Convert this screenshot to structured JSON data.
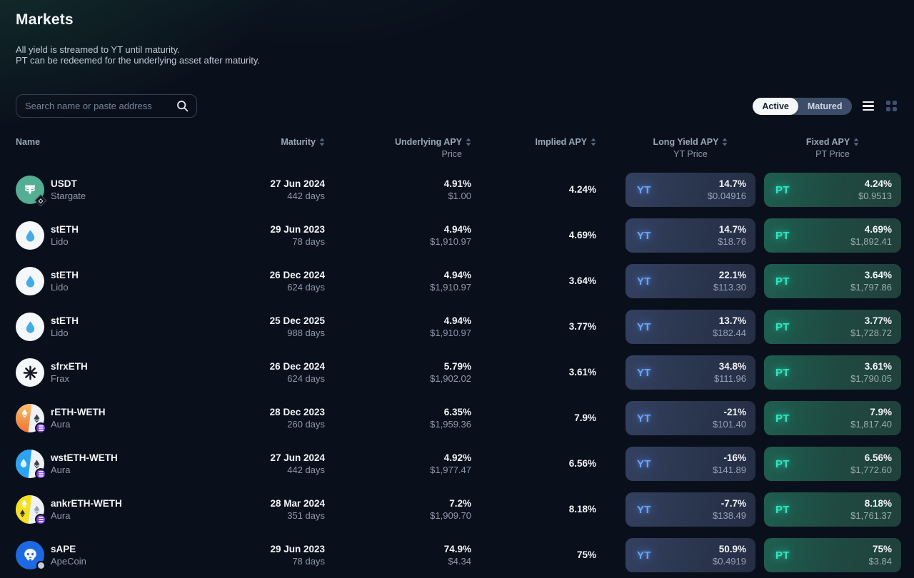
{
  "page": {
    "title": "Markets",
    "subtitle_line1": "All yield is streamed to YT until maturity.",
    "subtitle_line2": "PT can be redeemed for the underlying asset after maturity."
  },
  "search": {
    "placeholder": "Search name or paste address"
  },
  "filter_toggle": {
    "active_label": "Active",
    "matured_label": "Matured",
    "selected": "Active"
  },
  "view_icons": {
    "list": "three-bars",
    "grid": "four-squares",
    "active_view": "list"
  },
  "colors": {
    "background": "#0a101b",
    "yt_accent": "#6aa4f8",
    "pt_accent": "#2fe6c0",
    "toggle_active_bg": "#f4f7fa",
    "aura_badge_purple": "#7b3fe4",
    "usdt_teal": "#53ae94",
    "apecoin_blue": "#1d69e0",
    "lido_droplet_blue": "#44abe9"
  },
  "table": {
    "headers": {
      "name": "Name",
      "maturity": "Maturity",
      "underlying_apy": "Underlying APY",
      "underlying_sub": "Price",
      "implied_apy": "Implied APY",
      "long_yield_apy": "Long Yield APY",
      "long_yield_sub": "YT Price",
      "fixed_apy": "Fixed APY",
      "fixed_sub": "PT Price"
    },
    "yt_label": "YT",
    "pt_label": "PT",
    "rows": [
      {
        "asset": "USDT",
        "protocol": "Stargate",
        "icon": "usdt",
        "maturity_date": "27 Jun 2024",
        "maturity_days": "442 days",
        "underlying_apy": "4.91%",
        "underlying_price": "$1.00",
        "implied_apy": "4.24%",
        "yt_apy": "14.7%",
        "yt_price": "$0.04916",
        "pt_apy": "4.24%",
        "pt_price": "$0.9513"
      },
      {
        "asset": "stETH",
        "protocol": "Lido",
        "icon": "steth",
        "maturity_date": "29 Jun 2023",
        "maturity_days": "78 days",
        "underlying_apy": "4.94%",
        "underlying_price": "$1,910.97",
        "implied_apy": "4.69%",
        "yt_apy": "14.7%",
        "yt_price": "$18.76",
        "pt_apy": "4.69%",
        "pt_price": "$1,892.41"
      },
      {
        "asset": "stETH",
        "protocol": "Lido",
        "icon": "steth",
        "maturity_date": "26 Dec 2024",
        "maturity_days": "624 days",
        "underlying_apy": "4.94%",
        "underlying_price": "$1,910.97",
        "implied_apy": "3.64%",
        "yt_apy": "22.1%",
        "yt_price": "$113.30",
        "pt_apy": "3.64%",
        "pt_price": "$1,797.86"
      },
      {
        "asset": "stETH",
        "protocol": "Lido",
        "icon": "steth",
        "maturity_date": "25 Dec 2025",
        "maturity_days": "988 days",
        "underlying_apy": "4.94%",
        "underlying_price": "$1,910.97",
        "implied_apy": "3.77%",
        "yt_apy": "13.7%",
        "yt_price": "$182.44",
        "pt_apy": "3.77%",
        "pt_price": "$1,728.72"
      },
      {
        "asset": "sfrxETH",
        "protocol": "Frax",
        "icon": "frax",
        "maturity_date": "26 Dec 2024",
        "maturity_days": "624 days",
        "underlying_apy": "5.79%",
        "underlying_price": "$1,902.02",
        "implied_apy": "3.61%",
        "yt_apy": "34.8%",
        "yt_price": "$111.96",
        "pt_apy": "3.61%",
        "pt_price": "$1,790.05"
      },
      {
        "asset": "rETH-WETH",
        "protocol": "Aura",
        "icon": "reth-weth",
        "maturity_date": "28 Dec 2023",
        "maturity_days": "260 days",
        "underlying_apy": "6.35%",
        "underlying_price": "$1,959.36",
        "implied_apy": "7.9%",
        "yt_apy": "-21%",
        "yt_price": "$101.40",
        "pt_apy": "7.9%",
        "pt_price": "$1,817.40"
      },
      {
        "asset": "wstETH-WETH",
        "protocol": "Aura",
        "icon": "wsteth-weth",
        "maturity_date": "27 Jun 2024",
        "maturity_days": "442 days",
        "underlying_apy": "4.92%",
        "underlying_price": "$1,977.47",
        "implied_apy": "6.56%",
        "yt_apy": "-16%",
        "yt_price": "$141.89",
        "pt_apy": "6.56%",
        "pt_price": "$1,772.60"
      },
      {
        "asset": "ankrETH-WETH",
        "protocol": "Aura",
        "icon": "ankreth-weth",
        "maturity_date": "28 Mar 2024",
        "maturity_days": "351 days",
        "underlying_apy": "7.2%",
        "underlying_price": "$1,909.70",
        "implied_apy": "8.18%",
        "yt_apy": "-7.7%",
        "yt_price": "$138.49",
        "pt_apy": "8.18%",
        "pt_price": "$1,761.37"
      },
      {
        "asset": "sAPE",
        "protocol": "ApeCoin",
        "icon": "sape",
        "maturity_date": "29 Jun 2023",
        "maturity_days": "78 days",
        "underlying_apy": "74.9%",
        "underlying_price": "$4.34",
        "implied_apy": "75%",
        "yt_apy": "50.9%",
        "yt_price": "$0.4919",
        "pt_apy": "75%",
        "pt_price": "$3.84"
      }
    ]
  }
}
